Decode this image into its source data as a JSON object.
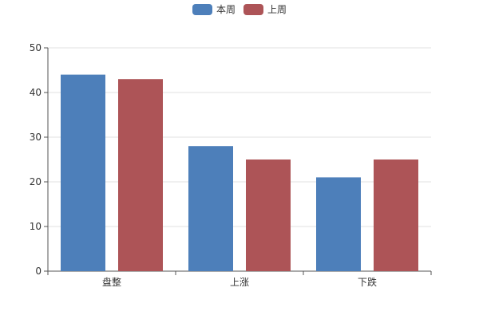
{
  "chart_data": {
    "type": "bar",
    "categories": [
      "盘整",
      "上涨",
      "下跌"
    ],
    "series": [
      {
        "name": "本周",
        "values": [
          44,
          28,
          21
        ],
        "color": "#4d7fba"
      },
      {
        "name": "上周",
        "values": [
          43,
          25,
          25
        ],
        "color": "#ad5457"
      }
    ],
    "ylim": [
      0,
      50
    ],
    "yticks": [
      0,
      10,
      20,
      30,
      40,
      50
    ],
    "grid": true,
    "legend_position": "top-center"
  }
}
